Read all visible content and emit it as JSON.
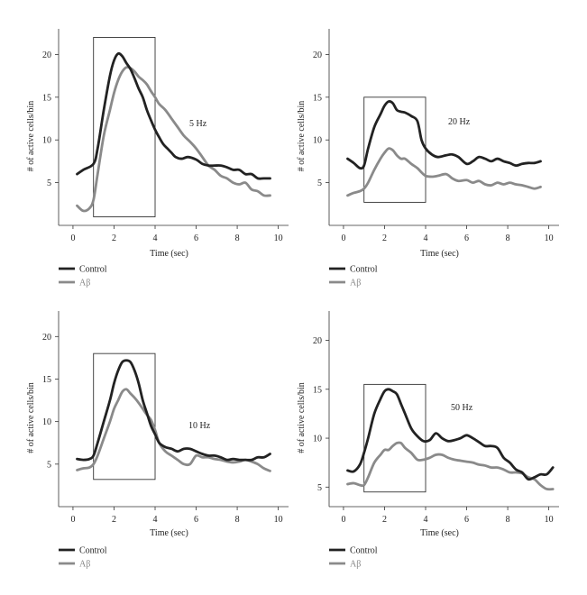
{
  "chart_data": [
    {
      "type": "line",
      "annotation": "5 Hz",
      "xlabel": "Time (sec)",
      "ylabel": "# of active cells/bin",
      "xlim": [
        -0.7,
        10.5
      ],
      "ylim": [
        0,
        23
      ],
      "xticks": [
        0,
        2,
        4,
        6,
        8,
        10
      ],
      "yticks": [
        5,
        10,
        15,
        20
      ],
      "box": {
        "x0": 1.0,
        "x1": 4.0,
        "y0": 1.0,
        "y1": 22.0
      },
      "legend": [
        "Control",
        "Aβ"
      ],
      "series": [
        {
          "name": "Control",
          "color": "#222222",
          "x": [
            0.2,
            0.5,
            1.0,
            1.2,
            1.5,
            1.8,
            2.0,
            2.2,
            2.4,
            2.6,
            2.8,
            3.0,
            3.2,
            3.4,
            3.6,
            3.8,
            4.0,
            4.2,
            4.4,
            4.6,
            4.8,
            5.0,
            5.3,
            5.6,
            6.0,
            6.3,
            6.6,
            6.9,
            7.2,
            7.5,
            7.8,
            8.1,
            8.4,
            8.7,
            9.0,
            9.3,
            9.6
          ],
          "y": [
            6.0,
            6.5,
            7.2,
            9.0,
            13.5,
            17.5,
            19.3,
            20.1,
            19.8,
            19.0,
            18.3,
            17.2,
            16.0,
            15.0,
            13.5,
            12.3,
            11.2,
            10.3,
            9.5,
            9.0,
            8.5,
            8.0,
            7.8,
            8.0,
            7.7,
            7.2,
            7.0,
            7.0,
            7.0,
            6.8,
            6.5,
            6.5,
            6.0,
            6.0,
            5.5,
            5.5,
            5.5
          ]
        },
        {
          "name": "Aβ",
          "color": "#8a8a8a",
          "x": [
            0.2,
            0.5,
            0.8,
            1.0,
            1.2,
            1.5,
            1.8,
            2.0,
            2.2,
            2.4,
            2.6,
            2.8,
            3.0,
            3.2,
            3.4,
            3.6,
            3.8,
            4.0,
            4.2,
            4.5,
            4.8,
            5.1,
            5.4,
            5.7,
            6.0,
            6.3,
            6.6,
            6.9,
            7.2,
            7.5,
            7.8,
            8.1,
            8.4,
            8.7,
            9.0,
            9.3,
            9.6
          ],
          "y": [
            2.3,
            1.7,
            2.0,
            3.0,
            6.0,
            10.5,
            13.5,
            15.5,
            17.0,
            18.0,
            18.5,
            18.4,
            18.0,
            17.4,
            17.0,
            16.5,
            15.7,
            15.0,
            14.2,
            13.5,
            12.5,
            11.5,
            10.5,
            9.8,
            9.0,
            8.0,
            7.0,
            6.5,
            5.8,
            5.5,
            5.0,
            4.8,
            5.0,
            4.2,
            4.0,
            3.5,
            3.5
          ]
        }
      ]
    },
    {
      "type": "line",
      "annotation": "20 Hz",
      "xlabel": "Time (sec)",
      "ylabel": "# of active cells/bin",
      "xlim": [
        -0.7,
        10.5
      ],
      "ylim": [
        0,
        23
      ],
      "xticks": [
        0,
        2,
        4,
        6,
        8,
        10
      ],
      "yticks": [
        5,
        10,
        15,
        20
      ],
      "box": {
        "x0": 1.0,
        "x1": 4.0,
        "y0": 2.7,
        "y1": 15.0
      },
      "legend": [
        "Control",
        "Aβ"
      ],
      "series": [
        {
          "name": "Control",
          "color": "#222222",
          "x": [
            0.2,
            0.5,
            0.8,
            1.0,
            1.2,
            1.5,
            1.8,
            2.0,
            2.2,
            2.4,
            2.6,
            2.8,
            3.0,
            3.3,
            3.6,
            3.8,
            4.0,
            4.3,
            4.6,
            5.0,
            5.3,
            5.6,
            6.0,
            6.3,
            6.6,
            6.9,
            7.2,
            7.5,
            7.8,
            8.1,
            8.4,
            8.7,
            9.0,
            9.3,
            9.6
          ],
          "y": [
            7.8,
            7.3,
            6.7,
            7.0,
            9.0,
            11.5,
            13.0,
            14.0,
            14.5,
            14.3,
            13.5,
            13.3,
            13.2,
            12.8,
            12.2,
            10.0,
            9.0,
            8.3,
            8.0,
            8.2,
            8.3,
            8.0,
            7.2,
            7.5,
            8.0,
            7.8,
            7.5,
            7.8,
            7.5,
            7.3,
            7.0,
            7.2,
            7.3,
            7.3,
            7.5
          ]
        },
        {
          "name": "Aβ",
          "color": "#8a8a8a",
          "x": [
            0.2,
            0.5,
            0.8,
            1.0,
            1.2,
            1.5,
            1.8,
            2.0,
            2.2,
            2.4,
            2.6,
            2.8,
            3.0,
            3.3,
            3.6,
            3.8,
            4.0,
            4.3,
            4.6,
            5.0,
            5.3,
            5.6,
            6.0,
            6.3,
            6.6,
            6.9,
            7.2,
            7.5,
            7.8,
            8.1,
            8.4,
            8.7,
            9.0,
            9.3,
            9.6
          ],
          "y": [
            3.5,
            3.8,
            4.0,
            4.3,
            5.0,
            6.5,
            7.8,
            8.5,
            9.0,
            8.8,
            8.2,
            7.8,
            7.8,
            7.2,
            6.7,
            6.2,
            5.8,
            5.7,
            5.8,
            6.0,
            5.5,
            5.2,
            5.3,
            5.0,
            5.2,
            4.8,
            4.7,
            5.0,
            4.8,
            5.0,
            4.8,
            4.7,
            4.5,
            4.3,
            4.5
          ]
        }
      ]
    },
    {
      "type": "line",
      "annotation": "10 Hz",
      "xlabel": "Time (sec)",
      "ylabel": "# of active cells/bin",
      "xlim": [
        -0.7,
        10.5
      ],
      "ylim": [
        0,
        23
      ],
      "xticks": [
        0,
        2,
        4,
        6,
        8,
        10
      ],
      "yticks": [
        5,
        10,
        15,
        20
      ],
      "box": {
        "x0": 1.0,
        "x1": 4.0,
        "y0": 3.2,
        "y1": 18.0
      },
      "legend": [
        "Control",
        "Aβ"
      ],
      "series": [
        {
          "name": "Control",
          "color": "#222222",
          "x": [
            0.2,
            0.5,
            0.8,
            1.0,
            1.2,
            1.5,
            1.8,
            2.0,
            2.2,
            2.4,
            2.6,
            2.8,
            3.0,
            3.2,
            3.4,
            3.6,
            3.8,
            4.0,
            4.2,
            4.5,
            4.8,
            5.1,
            5.4,
            5.7,
            6.0,
            6.3,
            6.6,
            6.9,
            7.2,
            7.5,
            7.8,
            8.1,
            8.4,
            8.7,
            9.0,
            9.3,
            9.6
          ],
          "y": [
            5.6,
            5.5,
            5.6,
            6.0,
            7.5,
            10.0,
            12.5,
            14.5,
            16.0,
            17.0,
            17.2,
            17.0,
            16.0,
            14.5,
            12.5,
            11.0,
            9.5,
            8.5,
            7.5,
            7.0,
            6.8,
            6.5,
            6.8,
            6.8,
            6.5,
            6.2,
            6.0,
            6.0,
            5.8,
            5.5,
            5.6,
            5.5,
            5.5,
            5.5,
            5.8,
            5.8,
            6.2
          ]
        },
        {
          "name": "Aβ",
          "color": "#8a8a8a",
          "x": [
            0.2,
            0.5,
            0.8,
            1.0,
            1.2,
            1.5,
            1.8,
            2.0,
            2.2,
            2.4,
            2.6,
            2.8,
            3.0,
            3.2,
            3.4,
            3.6,
            3.8,
            4.0,
            4.2,
            4.5,
            4.8,
            5.1,
            5.4,
            5.7,
            6.0,
            6.3,
            6.6,
            6.9,
            7.2,
            7.5,
            7.8,
            8.1,
            8.4,
            8.7,
            9.0,
            9.3,
            9.6
          ],
          "y": [
            4.3,
            4.5,
            4.6,
            5.0,
            6.0,
            8.0,
            10.0,
            11.5,
            12.5,
            13.5,
            13.8,
            13.3,
            12.8,
            12.2,
            11.5,
            10.8,
            10.2,
            9.0,
            7.5,
            6.5,
            6.0,
            5.5,
            5.0,
            5.0,
            6.0,
            5.8,
            5.8,
            5.6,
            5.5,
            5.3,
            5.2,
            5.3,
            5.5,
            5.3,
            5.0,
            4.5,
            4.2
          ]
        }
      ]
    },
    {
      "type": "line",
      "annotation": "50 Hz",
      "xlabel": "Time (sec)",
      "ylabel": "# of active cells/bin",
      "xlim": [
        -0.7,
        10.5
      ],
      "ylim": [
        3,
        23
      ],
      "xticks": [
        0,
        2,
        4,
        6,
        8,
        10
      ],
      "yticks": [
        5,
        10,
        15,
        20
      ],
      "box": {
        "x0": 1.0,
        "x1": 4.0,
        "y0": 4.5,
        "y1": 15.5
      },
      "legend": [
        "Control",
        "Aβ"
      ],
      "series": [
        {
          "name": "Control",
          "color": "#222222",
          "x": [
            0.2,
            0.5,
            0.8,
            1.0,
            1.2,
            1.5,
            1.8,
            2.0,
            2.2,
            2.4,
            2.6,
            2.8,
            3.0,
            3.3,
            3.6,
            3.9,
            4.2,
            4.5,
            4.8,
            5.1,
            5.4,
            5.7,
            6.0,
            6.3,
            6.6,
            6.9,
            7.2,
            7.5,
            7.8,
            8.1,
            8.4,
            8.7,
            9.0,
            9.3,
            9.6,
            9.9,
            10.2
          ],
          "y": [
            6.7,
            6.6,
            7.3,
            8.5,
            10.0,
            12.5,
            14.0,
            14.8,
            15.0,
            14.8,
            14.5,
            13.5,
            12.5,
            11.0,
            10.2,
            9.7,
            9.8,
            10.5,
            10.0,
            9.7,
            9.8,
            10.0,
            10.3,
            10.0,
            9.6,
            9.2,
            9.2,
            9.0,
            8.0,
            7.5,
            6.8,
            6.5,
            5.8,
            6.0,
            6.3,
            6.3,
            7.0
          ]
        },
        {
          "name": "Aβ",
          "color": "#8a8a8a",
          "x": [
            0.2,
            0.5,
            0.8,
            1.0,
            1.2,
            1.5,
            1.8,
            2.0,
            2.2,
            2.4,
            2.6,
            2.8,
            3.0,
            3.3,
            3.6,
            3.9,
            4.2,
            4.5,
            4.8,
            5.1,
            5.4,
            5.7,
            6.0,
            6.3,
            6.6,
            6.9,
            7.2,
            7.5,
            7.8,
            8.1,
            8.4,
            8.7,
            9.0,
            9.3,
            9.6,
            9.9,
            10.2
          ],
          "y": [
            5.3,
            5.4,
            5.2,
            5.2,
            6.0,
            7.5,
            8.3,
            8.8,
            8.8,
            9.2,
            9.5,
            9.5,
            9.0,
            8.5,
            7.8,
            7.8,
            8.0,
            8.3,
            8.3,
            8.0,
            7.8,
            7.7,
            7.6,
            7.5,
            7.3,
            7.2,
            7.0,
            7.0,
            6.8,
            6.5,
            6.5,
            6.4,
            6.0,
            5.8,
            5.2,
            4.8,
            4.8
          ]
        }
      ]
    }
  ]
}
